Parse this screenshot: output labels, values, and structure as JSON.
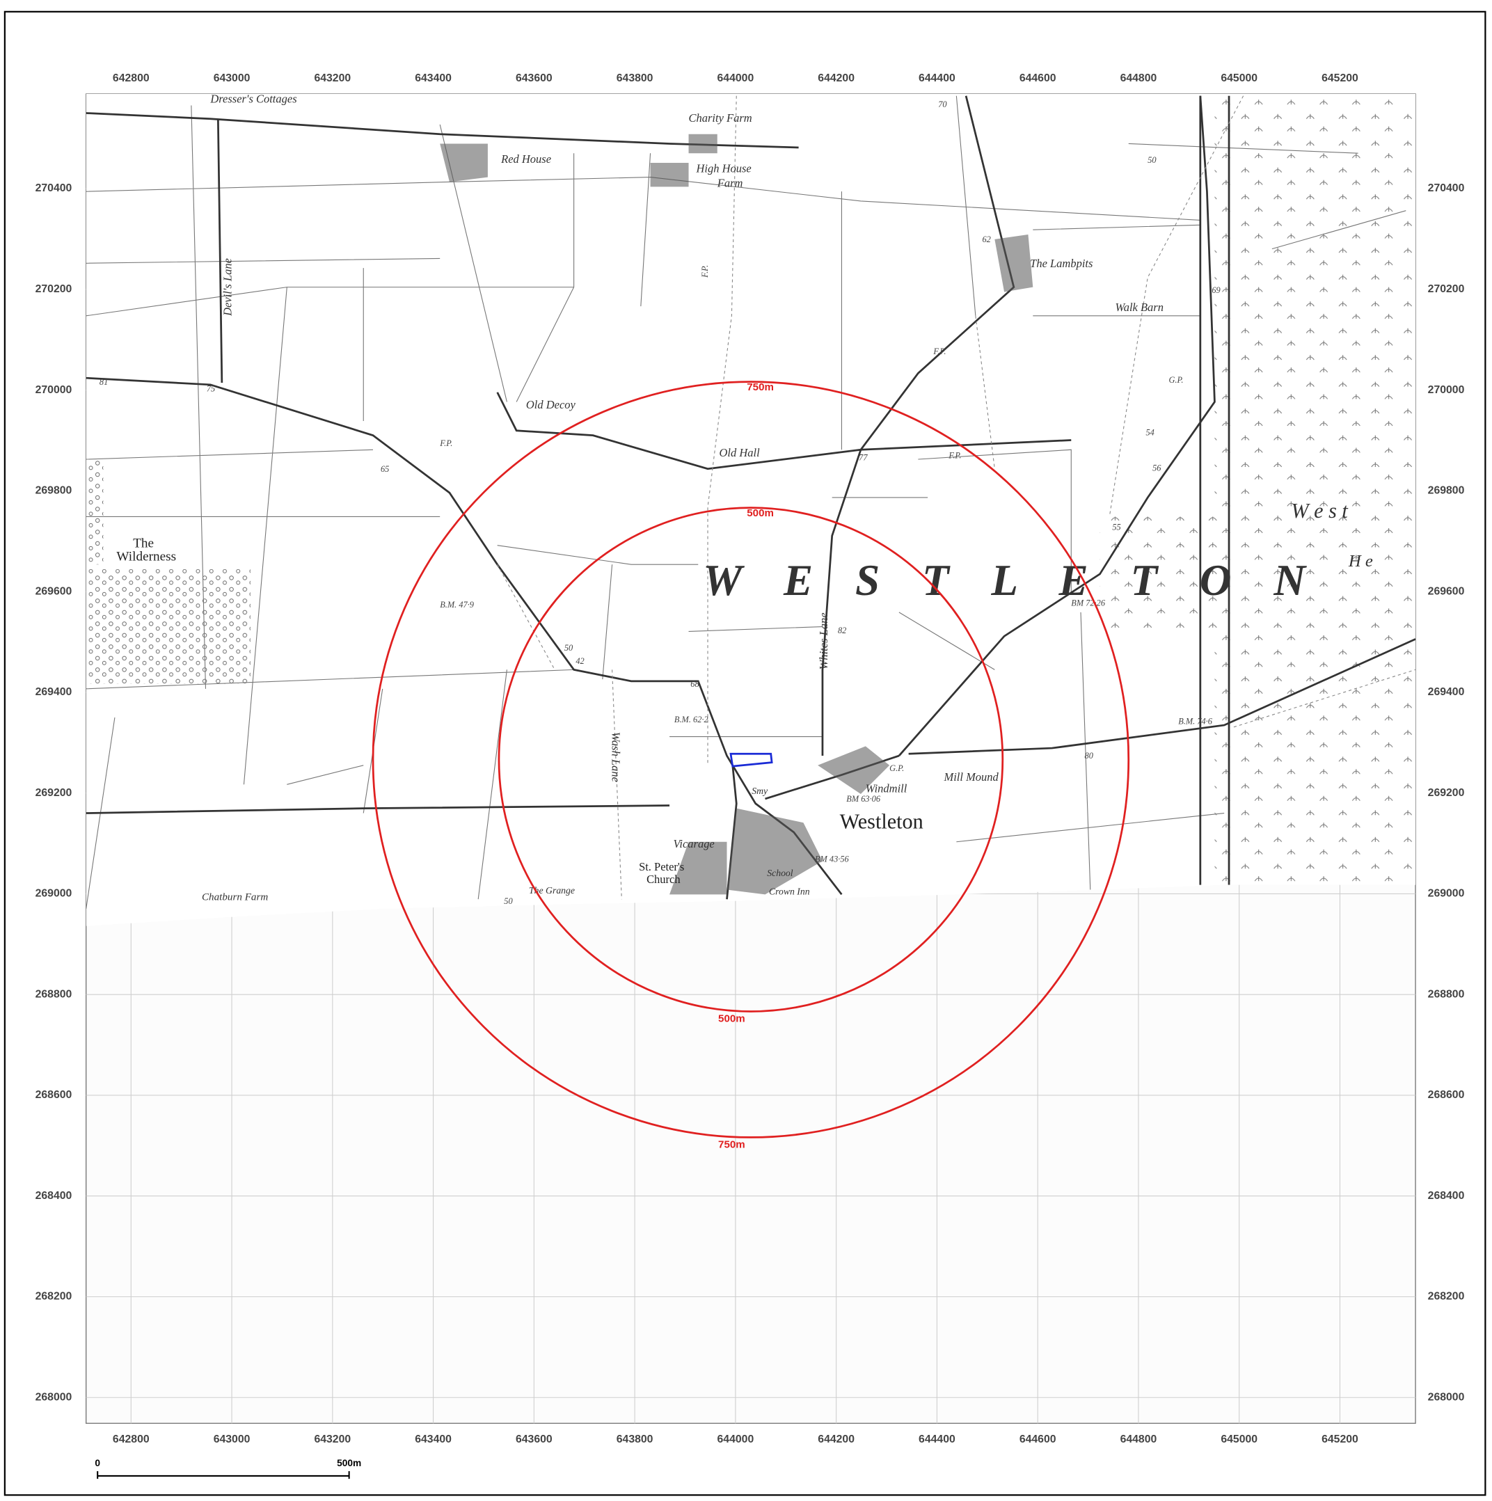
{
  "grid": {
    "eastings": [
      642800,
      643000,
      643200,
      643400,
      643600,
      643800,
      644000,
      644200,
      644400,
      644600,
      644800,
      645000,
      645200
    ],
    "northings": [
      270400,
      270200,
      270000,
      269800,
      269600,
      269400,
      269200,
      269000,
      268800,
      268600,
      268400,
      268200,
      268000
    ]
  },
  "labels": [
    "Dresser's Cottages",
    "Charity Farm",
    "Red House",
    "High House",
    "Farm",
    "Devil's Lane",
    "The Lambpits",
    "Walk Barn",
    "Old Decoy",
    "Old Hall",
    "The",
    "Wilderness",
    "W E S T L E T O N",
    "W e s t",
    "H e",
    "Whites Lane",
    "Wash Lane",
    "B.M. 47·9",
    "B.M. 62·2",
    "BM 72·26",
    "B.M. 74·6",
    "BM 63·06",
    "BM 43·56",
    "Smy",
    "Windmill",
    "G.P.",
    "Mill Mound",
    "Westleton",
    "Vicarage",
    "St. Peter's",
    "Church",
    "School",
    "Crown Inn",
    "The Grange",
    "Chatburn Farm",
    "F.P.",
    "F.P.",
    "F.P.",
    "F.P.",
    "G.P.",
    "70",
    "62",
    "69",
    "81",
    "75",
    "65",
    "68",
    "42",
    "82",
    "80",
    "77",
    "54",
    "56",
    "55",
    "50",
    "50",
    "50"
  ],
  "rings": [
    {
      "radius": 750,
      "label": "750m"
    },
    {
      "radius": 500,
      "label": "500m"
    }
  ],
  "scale_bar": {
    "start": "0",
    "end": "500m"
  }
}
